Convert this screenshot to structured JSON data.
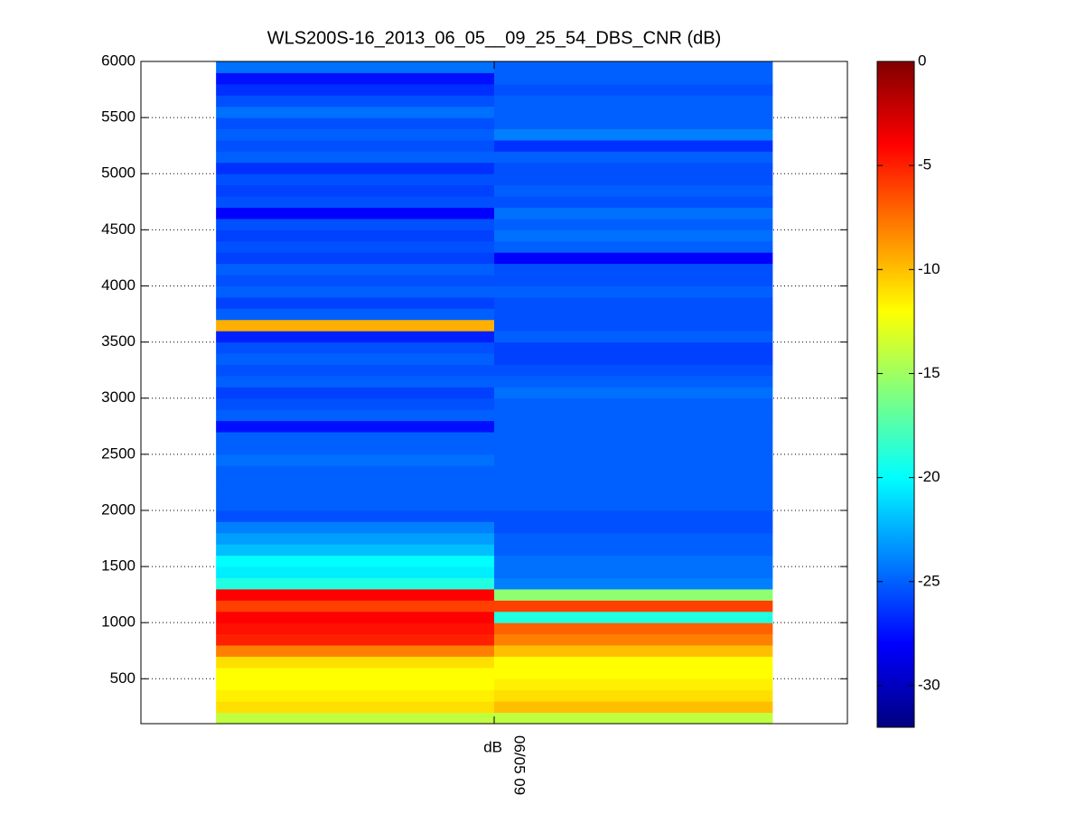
{
  "chart_data": {
    "type": "heatmap",
    "title": "WLS200S-16_2013_06_05__09_25_54_DBS_CNR (dB)",
    "colormap": "jet",
    "clim": [
      -32,
      0
    ],
    "cticks": [
      0,
      -5,
      -10,
      -15,
      -20,
      -25,
      -30
    ],
    "xlim": [
      -0.135,
      1.135
    ],
    "x_edges": [
      0,
      0.5,
      1
    ],
    "xticks": [
      {
        "value": 0.5,
        "label": "dB"
      }
    ],
    "xlabel": "06/05 09",
    "ylim": [
      100,
      6000
    ],
    "yticks": [
      500,
      1000,
      1500,
      2000,
      2500,
      3000,
      3500,
      4000,
      4500,
      5000,
      5500,
      6000
    ],
    "grid": true,
    "y_edges": [
      100,
      200,
      300,
      400,
      500,
      600,
      700,
      800,
      900,
      1000,
      1100,
      1200,
      1300,
      1400,
      1500,
      1600,
      1700,
      1800,
      1900,
      2000,
      2100,
      2200,
      2300,
      2400,
      2500,
      2600,
      2700,
      2800,
      2900,
      3000,
      3100,
      3200,
      3300,
      3400,
      3500,
      3600,
      3700,
      3800,
      3900,
      4000,
      4100,
      4200,
      4300,
      4400,
      4500,
      4600,
      4700,
      4800,
      4900,
      5000,
      5100,
      5200,
      5300,
      5400,
      5500,
      5600,
      5700,
      5800,
      5900,
      6000
    ],
    "z": [
      [
        -14,
        -11,
        -11.5,
        -12,
        -12,
        -11,
        -8,
        -5,
        -4.5,
        -4,
        -6,
        -4,
        -19,
        -20.5,
        -20,
        -22,
        -23,
        -24,
        -25.5,
        -25,
        -25,
        -25,
        -25,
        -24.5,
        -25,
        -25,
        -27.5,
        -25,
        -25.5,
        -26,
        -25,
        -25.5,
        -25,
        -25.5,
        -27,
        -9.5,
        -25,
        -26,
        -25,
        -25.5,
        -25,
        -26,
        -25.5,
        -26,
        -25.5,
        -28,
        -25.5,
        -26,
        -25.5,
        -26.5,
        -25,
        -25.5,
        -25,
        -25.5,
        -24.5,
        -25.5,
        -26.5,
        -27.5,
        -24.5
      ],
      [
        -14,
        -10,
        -11,
        -11.5,
        -12,
        -12,
        -10,
        -8,
        -7,
        -19,
        -6,
        -15.5,
        -24,
        -24.5,
        -24.5,
        -25,
        -25,
        -25.5,
        -25.5,
        -25,
        -25,
        -25,
        -25,
        -25,
        -25,
        -25,
        -25,
        -25,
        -25,
        -24.5,
        -25,
        -25.5,
        -26,
        -26,
        -25,
        -25.5,
        -25.5,
        -25.5,
        -25,
        -25.5,
        -25.5,
        -28,
        -25,
        -24.5,
        -25,
        -24.5,
        -25.5,
        -25,
        -25.5,
        -25.5,
        -25,
        -26.5,
        -24,
        -25,
        -25,
        -25,
        -25.5,
        -25,
        -25
      ]
    ]
  }
}
